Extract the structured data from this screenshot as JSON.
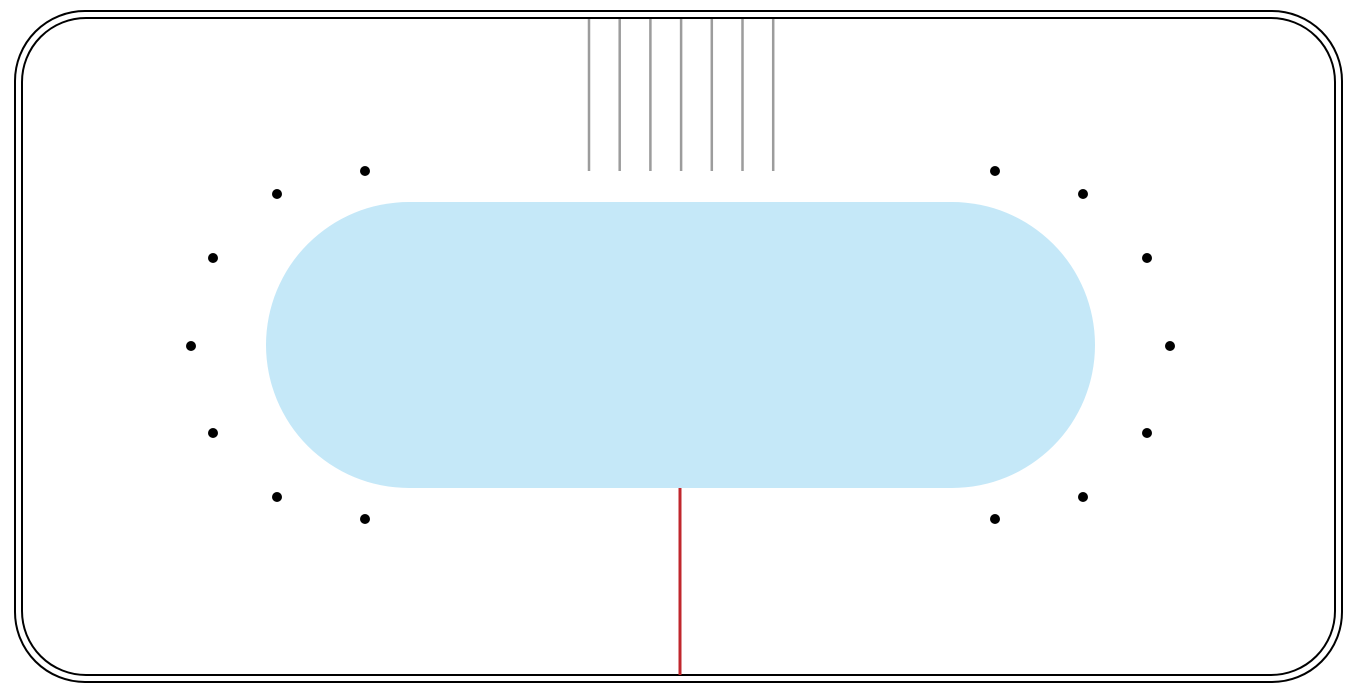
{
  "title": "",
  "colors": {
    "background": "#ffffff",
    "outer_frame_stroke": "#000000",
    "center_shape_fill": "#c5e8f8",
    "top_lines_stroke": "#9c9c9c",
    "bottom_line_stroke": "#c0272d",
    "dot_fill": "#000000"
  },
  "counts": {
    "top_lines": 7,
    "dots_left": 7,
    "dots_right": 7
  },
  "icons": {
    "frame": "rounded-rectangle-double-outline",
    "center": "stadium-shape",
    "top_lines": "vertical-line-group",
    "bottom_line": "vertical-red-line",
    "dots": "dot"
  }
}
